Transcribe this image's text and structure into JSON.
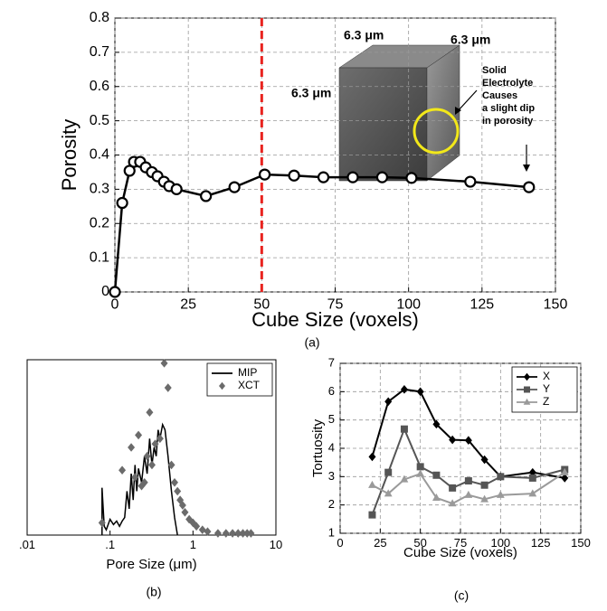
{
  "chart_data": [
    {
      "type": "line",
      "xlabel": "Cube Size (voxels)",
      "ylabel": "Porosity",
      "caption": "(a)",
      "x": [
        0,
        2.5,
        5,
        6.5,
        8.6,
        10.5,
        12.6,
        14.5,
        16.7,
        18.5,
        21,
        31,
        40.7,
        51,
        61,
        71,
        81,
        91,
        101,
        121,
        141
      ],
      "series": [
        {
          "name": "Porosity",
          "color": "#000000",
          "marker": "circle",
          "values": [
            0,
            0.26,
            0.354,
            0.38,
            0.38,
            0.364,
            0.35,
            0.338,
            0.322,
            0.309,
            0.3,
            0.28,
            0.306,
            0.343,
            0.34,
            0.335,
            0.335,
            0.335,
            0.333,
            0.322,
            0.306
          ]
        }
      ],
      "xlim": [
        0,
        150
      ],
      "xticks": [
        0,
        25,
        50,
        75,
        100,
        125,
        150
      ],
      "ylim": [
        0,
        0.8
      ],
      "yticks": [
        0,
        0.1,
        0.2,
        0.3,
        0.4,
        0.5,
        0.6,
        0.7,
        0.8
      ],
      "grid": true,
      "vline": {
        "x": 50,
        "color": "#e8231f"
      },
      "annotations": [
        "6.3 μm",
        "6.3 μm",
        "6.3 μm",
        "Solid",
        "Electrolyte",
        "Causes",
        "a slight dip",
        "in porosity"
      ]
    },
    {
      "type": "line",
      "xlabel": "Pore Size (μm)",
      "caption": "(b)",
      "xscale": "log",
      "series": [
        {
          "name": "MIP",
          "color": "#000000",
          "marker": "none",
          "x": [
            0.08,
            0.08,
            0.085,
            0.09,
            0.1,
            0.11,
            0.12,
            0.13,
            0.14,
            0.15,
            0.16,
            0.17,
            0.18,
            0.19,
            0.2,
            0.21,
            0.22,
            0.24,
            0.26,
            0.28,
            0.3,
            0.32,
            0.34,
            0.36,
            0.38,
            0.4,
            0.43,
            0.46,
            0.5,
            0.55,
            0.6,
            0.65
          ],
          "values": [
            0,
            0.27,
            0.05,
            0.03,
            0.09,
            0.06,
            0.08,
            0.05,
            0.08,
            0.1,
            0.25,
            0.15,
            0.35,
            0.2,
            0.4,
            0.25,
            0.38,
            0.3,
            0.45,
            0.35,
            0.55,
            0.4,
            0.5,
            0.45,
            0.6,
            0.55,
            0.63,
            0.6,
            0.45,
            0.25,
            0.1,
            0
          ]
        },
        {
          "name": "XCT",
          "color": "#6b6b6b",
          "marker": "diamond",
          "line": false,
          "x": [
            0.08,
            0.14,
            0.18,
            0.2,
            0.22,
            0.24,
            0.26,
            0.28,
            0.3,
            0.32,
            0.35,
            0.4,
            0.45,
            0.5,
            0.55,
            0.6,
            0.65,
            0.7,
            0.75,
            0.8,
            0.9,
            1.0,
            1.1,
            1.3,
            1.5,
            2,
            2.5,
            3,
            3.5,
            4,
            4.5,
            5
          ],
          "values": [
            0.07,
            0.37,
            0.5,
            0.33,
            0.57,
            0.28,
            0.3,
            0.45,
            0.7,
            0.4,
            0.52,
            0.55,
            0.98,
            0.84,
            0.4,
            0.3,
            0.25,
            0.2,
            0.17,
            0.13,
            0.09,
            0.07,
            0.05,
            0.03,
            0.02,
            0.01,
            0.01,
            0.01,
            0.01,
            0.01,
            0.01,
            0.01
          ]
        }
      ],
      "xlim": [
        0.01,
        10
      ],
      "xticks": [
        {
          "value": 0.01,
          "label": ".01"
        },
        {
          "value": 0.1,
          "label": ".1"
        },
        1,
        10
      ],
      "ylim": [
        0,
        1
      ],
      "grid": false,
      "legend": "upper right"
    },
    {
      "type": "line",
      "xlabel": "Cube Size (voxels)",
      "ylabel": "Tortuosity",
      "caption": "(c)",
      "x": [
        20,
        30,
        40,
        50,
        60,
        70,
        80,
        90,
        100,
        120,
        140
      ],
      "series": [
        {
          "name": "X",
          "color": "#000000",
          "marker": "diamond",
          "values": [
            3.7,
            5.65,
            6.08,
            6.0,
            4.85,
            4.3,
            4.28,
            3.6,
            3.0,
            3.15,
            2.95
          ]
        },
        {
          "name": "Y",
          "color": "#555555",
          "marker": "square",
          "values": [
            1.65,
            3.15,
            4.68,
            3.35,
            3.05,
            2.6,
            2.85,
            2.7,
            3.0,
            2.95,
            3.25
          ]
        },
        {
          "name": "Z",
          "color": "#9a9a9a",
          "marker": "triangle",
          "values": [
            2.7,
            2.4,
            2.9,
            3.1,
            2.25,
            2.05,
            2.35,
            2.2,
            2.35,
            2.4,
            3.15
          ]
        }
      ],
      "xlim": [
        0,
        150
      ],
      "xticks": [
        0,
        25,
        50,
        75,
        100,
        125,
        150
      ],
      "ylim": [
        1,
        7
      ],
      "yticks": [
        1,
        2,
        3,
        4,
        5,
        6,
        7
      ],
      "grid": true,
      "legend": "upper right"
    }
  ]
}
